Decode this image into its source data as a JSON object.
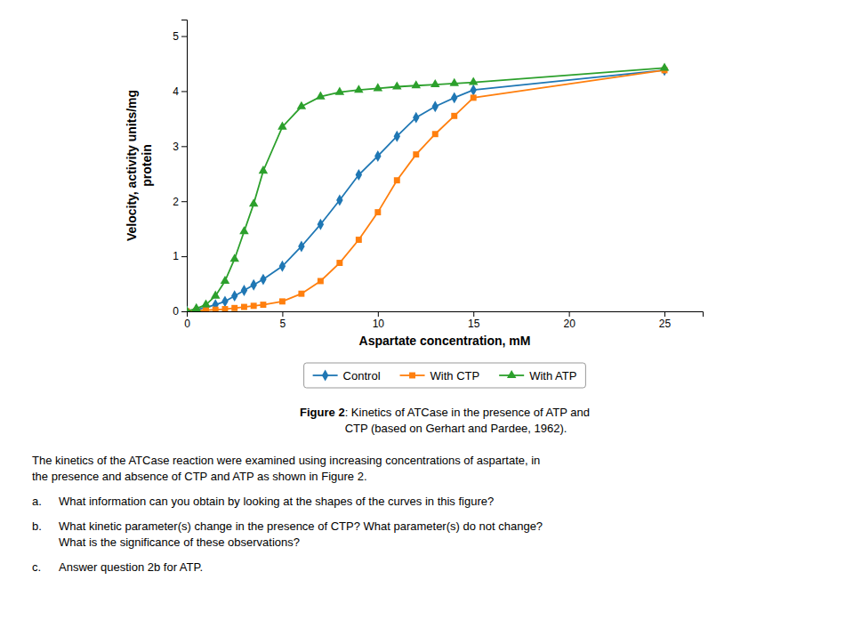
{
  "chart_data": {
    "type": "line",
    "x_label": "Aspartate concentration, mM",
    "y_label": "Velocity, activity units/mg\nprotein",
    "xlim": [
      0,
      27
    ],
    "ylim": [
      0,
      5.3
    ],
    "xticks": [
      0,
      5,
      10,
      15,
      20,
      25
    ],
    "yticks": [
      0,
      1,
      2,
      3,
      4,
      5
    ],
    "x": [
      0,
      0.5,
      1,
      1.5,
      2,
      2.5,
      3,
      3.5,
      4,
      5,
      6,
      7,
      8,
      9,
      10,
      11,
      12,
      13,
      14,
      15,
      25
    ],
    "series": [
      {
        "name": "Control",
        "marker": "diamond",
        "line_style": "solid",
        "values": [
          0,
          0.03,
          0.07,
          0.12,
          0.18,
          0.28,
          0.38,
          0.48,
          0.58,
          0.82,
          1.18,
          1.58,
          2.02,
          2.48,
          2.82,
          3.18,
          3.52,
          3.72,
          3.88,
          4.02,
          4.38
        ]
      },
      {
        "name": "With CTP",
        "marker": "square",
        "line_style": "solid",
        "values": [
          0,
          0.01,
          0.02,
          0.03,
          0.04,
          0.06,
          0.08,
          0.1,
          0.12,
          0.18,
          0.32,
          0.55,
          0.88,
          1.3,
          1.8,
          2.38,
          2.85,
          3.22,
          3.55,
          3.88,
          4.38
        ]
      },
      {
        "name": "With ATP",
        "marker": "triangle",
        "line_style": "solid",
        "values": [
          0,
          0.05,
          0.12,
          0.28,
          0.55,
          0.95,
          1.45,
          1.95,
          2.55,
          3.35,
          3.72,
          3.9,
          3.98,
          4.02,
          4.05,
          4.08,
          4.1,
          4.12,
          4.14,
          4.16,
          4.42
        ]
      }
    ],
    "legend": "bottom",
    "annotations": [
      {
        "label": "Figure 2",
        "lines": [
          ": Kinetics of ATCase in the presence of ATP and",
          "CTP (based on Gerhart and Pardee, 1962)."
        ]
      },
      {
        "lines": [
          "The kinetics of the ATCase reaction were examined using increasing concentrations of aspartate, in",
          "the presence and absence of CTP and ATP as shown in Figure 2."
        ]
      },
      {
        "label": "a.",
        "lines": [
          "What information can you obtain by looking at the shapes of the curves in this figure?"
        ]
      },
      {
        "label": "b.",
        "lines": [
          "What kinetic parameter(s) change in the presence of CTP? What parameter(s) do not change?",
          "What is the significance of these observations?"
        ]
      },
      {
        "label": "c.",
        "lines": [
          "Answer question 2b for ATP."
        ]
      }
    ]
  }
}
